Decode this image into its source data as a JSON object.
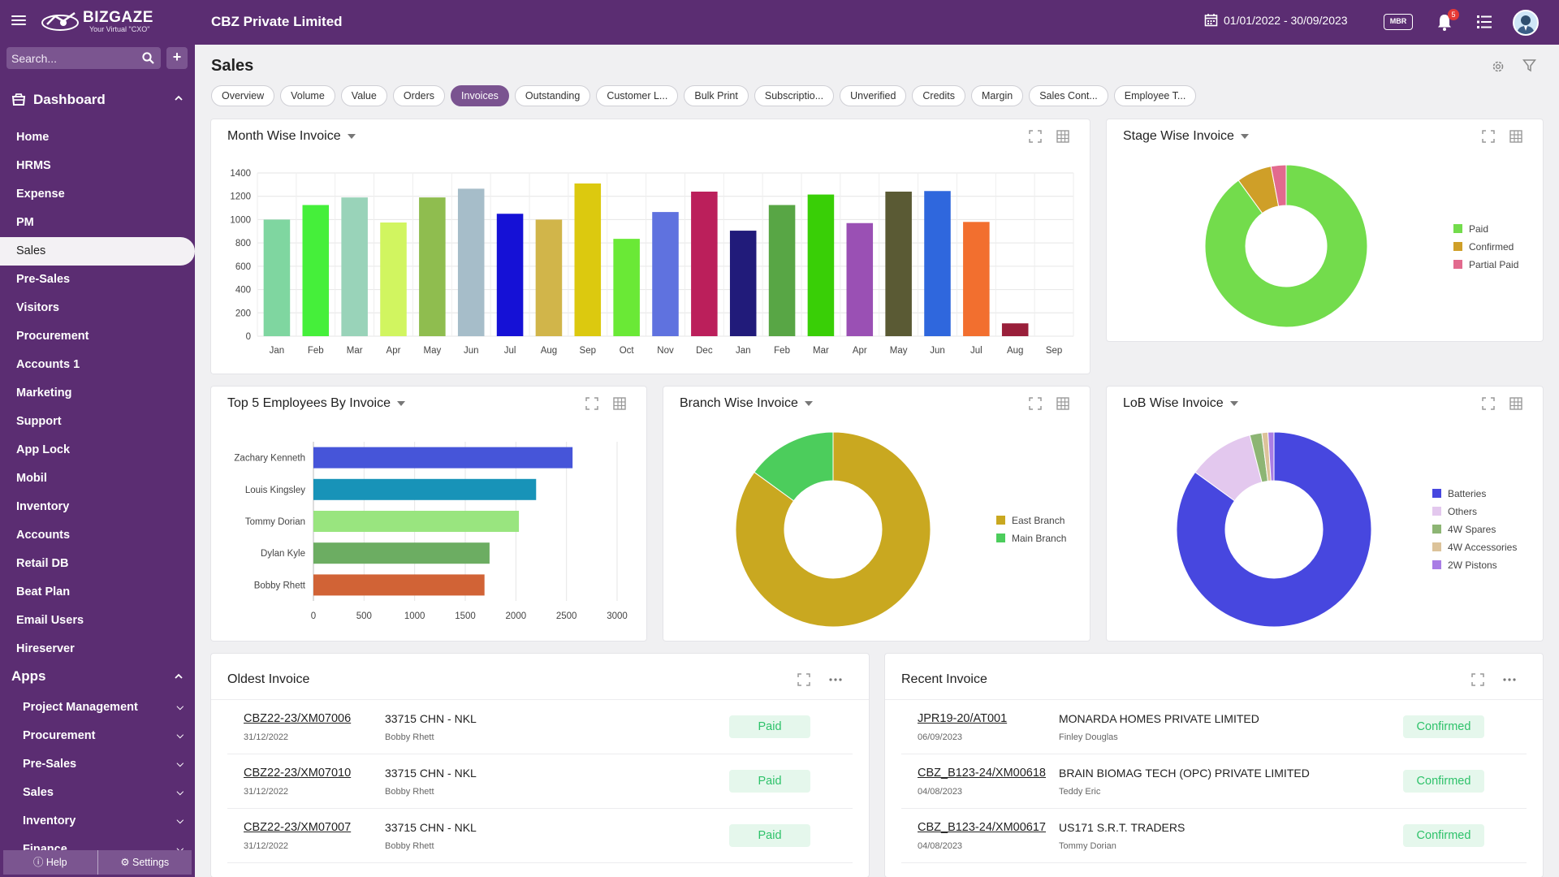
{
  "header": {
    "brand": "BIZGAZE",
    "tagline": "Your Virtual \"CXO\"",
    "company": "CBZ Private Limited",
    "date_range": "01/01/2022 - 30/09/2023",
    "mbr_label": "MBR",
    "notification_count": "5"
  },
  "sidebar": {
    "search_placeholder": "Search...",
    "add_label": "+",
    "dashboard_label": "Dashboard",
    "items": [
      "Home",
      "HRMS",
      "Expense",
      "PM",
      "Sales",
      "Pre-Sales",
      "Visitors",
      "Procurement",
      "Accounts 1",
      "Marketing",
      "Support",
      "App Lock",
      "Mobil",
      "Inventory",
      "Accounts",
      "Retail DB",
      "Beat Plan",
      "Email Users",
      "Hireserver"
    ],
    "active_item": "Sales",
    "apps_label": "Apps",
    "apps": [
      "Project Management",
      "Procurement",
      "Pre-Sales",
      "Sales",
      "Inventory",
      "Finance"
    ],
    "help_label": "Help",
    "settings_label": "Settings"
  },
  "page": {
    "title": "Sales",
    "tabs": [
      "Overview",
      "Volume",
      "Value",
      "Orders",
      "Invoices",
      "Outstanding",
      "Customer L...",
      "Bulk Print",
      "Subscriptio...",
      "Unverified",
      "Credits",
      "Margin",
      "Sales Cont...",
      "Employee T..."
    ],
    "active_tab": "Invoices"
  },
  "colors": {
    "header_bg": "#5b2d72",
    "active_tab": "#7a5390",
    "status_text": "#2ec26a",
    "status_bg": "#e5f7ec"
  },
  "chart_data": [
    {
      "id": "month-wise",
      "type": "bar",
      "title": "Month Wise Invoice",
      "categories": [
        "Jan",
        "Feb",
        "Mar",
        "Apr",
        "May",
        "Jun",
        "Jul",
        "Aug",
        "Sep",
        "Oct",
        "Nov",
        "Dec",
        "Jan",
        "Feb",
        "Mar",
        "Apr",
        "May",
        "Jun",
        "Jul",
        "Aug",
        "Sep"
      ],
      "values": [
        1000,
        1125,
        1190,
        975,
        1190,
        1265,
        1050,
        1000,
        1310,
        835,
        1065,
        1240,
        905,
        1125,
        1215,
        970,
        1240,
        1245,
        980,
        110,
        0
      ],
      "colors": [
        "#7fd6a0",
        "#45ef3a",
        "#99d3b9",
        "#d1f560",
        "#8fbd4f",
        "#a6bdc9",
        "#1511d6",
        "#d1b54a",
        "#dcc90f",
        "#6ae936",
        "#5f72df",
        "#bb1f5b",
        "#211b7a",
        "#58a645",
        "#39cf06",
        "#9a50b4",
        "#5a5a34",
        "#2f67dd",
        "#f26f2f",
        "#991f3a",
        "#cccccc"
      ],
      "ylim": [
        0,
        1400
      ],
      "yticks": [
        0,
        200,
        400,
        600,
        800,
        1000,
        1200,
        1400
      ],
      "grid": true
    },
    {
      "id": "stage-wise",
      "type": "pie",
      "title": "Stage Wise Invoice",
      "labels": [
        "Paid",
        "Confirmed",
        "Partial Paid"
      ],
      "values": [
        90,
        7,
        3
      ],
      "colors": [
        "#73dc4c",
        "#cf9f28",
        "#e26a8e"
      ],
      "legend": "right"
    },
    {
      "id": "top5",
      "type": "bar",
      "orientation": "horizontal",
      "title": "Top 5 Employees By Invoice",
      "categories": [
        "Zachary Kenneth",
        "Louis Kingsley",
        "Tommy Dorian",
        "Dylan Kyle",
        "Bobby Rhett"
      ],
      "values": [
        2560,
        2200,
        2030,
        1740,
        1690
      ],
      "colors": [
        "#4655d9",
        "#1893b8",
        "#99e57f",
        "#6cad62",
        "#d16336"
      ],
      "xlim": [
        0,
        3000
      ],
      "xticks": [
        0,
        500,
        1000,
        1500,
        2000,
        2500,
        3000
      ],
      "grid": true
    },
    {
      "id": "branch-wise",
      "type": "pie",
      "title": "Branch Wise Invoice",
      "labels": [
        "East Branch",
        "Main Branch"
      ],
      "values": [
        85,
        15
      ],
      "colors": [
        "#c9a820",
        "#4ccd5c"
      ],
      "legend": "right"
    },
    {
      "id": "lob-wise",
      "type": "pie",
      "title": "LoB Wise Invoice",
      "labels": [
        "Batteries",
        "Others",
        "4W Spares",
        "4W Accessories",
        "2W Pistons"
      ],
      "values": [
        85,
        11,
        2,
        1,
        1
      ],
      "colors": [
        "#4747df",
        "#e3c8ee",
        "#8db574",
        "#dcc39a",
        "#a97de5"
      ],
      "legend": "right"
    }
  ],
  "oldest": {
    "title": "Oldest Invoice",
    "rows": [
      {
        "number": "CBZ22-23/XM07006",
        "date": "31/12/2022",
        "party": "33715 CHN - NKL",
        "employee": "Bobby Rhett",
        "status": "Paid"
      },
      {
        "number": "CBZ22-23/XM07010",
        "date": "31/12/2022",
        "party": "33715 CHN - NKL",
        "employee": "Bobby Rhett",
        "status": "Paid"
      },
      {
        "number": "CBZ22-23/XM07007",
        "date": "31/12/2022",
        "party": "33715 CHN - NKL",
        "employee": "Bobby Rhett",
        "status": "Paid"
      }
    ]
  },
  "recent": {
    "title": "Recent Invoice",
    "rows": [
      {
        "number": "JPR19-20/AT001",
        "date": "06/09/2023",
        "party": "MONARDA HOMES PRIVATE LIMITED",
        "employee": "Finley Douglas",
        "status": "Confirmed"
      },
      {
        "number": "CBZ_B123-24/XM00618",
        "date": "04/08/2023",
        "party": "BRAIN BIOMAG TECH (OPC) PRIVATE LIMITED",
        "employee": "Teddy Eric",
        "status": "Confirmed"
      },
      {
        "number": "CBZ_B123-24/XM00617",
        "date": "04/08/2023",
        "party": "US171 S.R.T. TRADERS",
        "employee": "Tommy Dorian",
        "status": "Confirmed"
      }
    ]
  }
}
